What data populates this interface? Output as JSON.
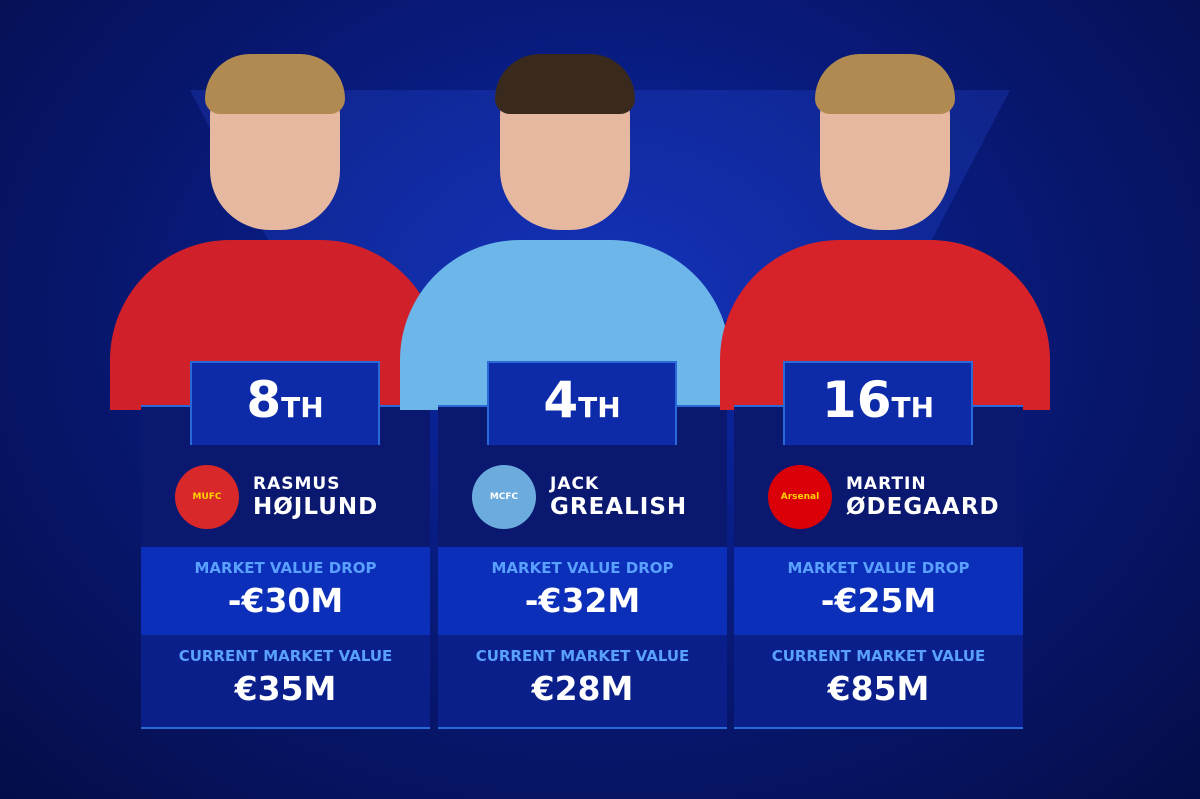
{
  "players": [
    {
      "rank": "8",
      "suffix": "TH",
      "first": "RASMUS",
      "last": "HØJLUND",
      "club": "Manchester United",
      "crest_text": "MUFC",
      "drop_label": "MARKET VALUE DROP",
      "drop": "-€30M",
      "current_label": "CURRENT MARKET VALUE",
      "current": "€35M",
      "shirt": "#d0202a",
      "crest": "#d8282a"
    },
    {
      "rank": "4",
      "suffix": "TH",
      "first": "JACK",
      "last": "GREALISH",
      "club": "Manchester City",
      "crest_text": "MCFC",
      "drop_label": "MARKET VALUE DROP",
      "drop": "-€32M",
      "current_label": "CURRENT MARKET VALUE",
      "current": "€28M",
      "shirt": "#6cb6ea",
      "crest": "#6cabdd"
    },
    {
      "rank": "16",
      "suffix": "TH",
      "first": "MARTIN",
      "last": "ØDEGAARD",
      "club": "Arsenal",
      "crest_text": "Arsenal",
      "drop_label": "MARKET VALUE DROP",
      "drop": "-€25M",
      "current_label": "CURRENT MARKET VALUE",
      "current": "€85M",
      "shirt": "#d8222a",
      "crest": "#db0007"
    }
  ]
}
